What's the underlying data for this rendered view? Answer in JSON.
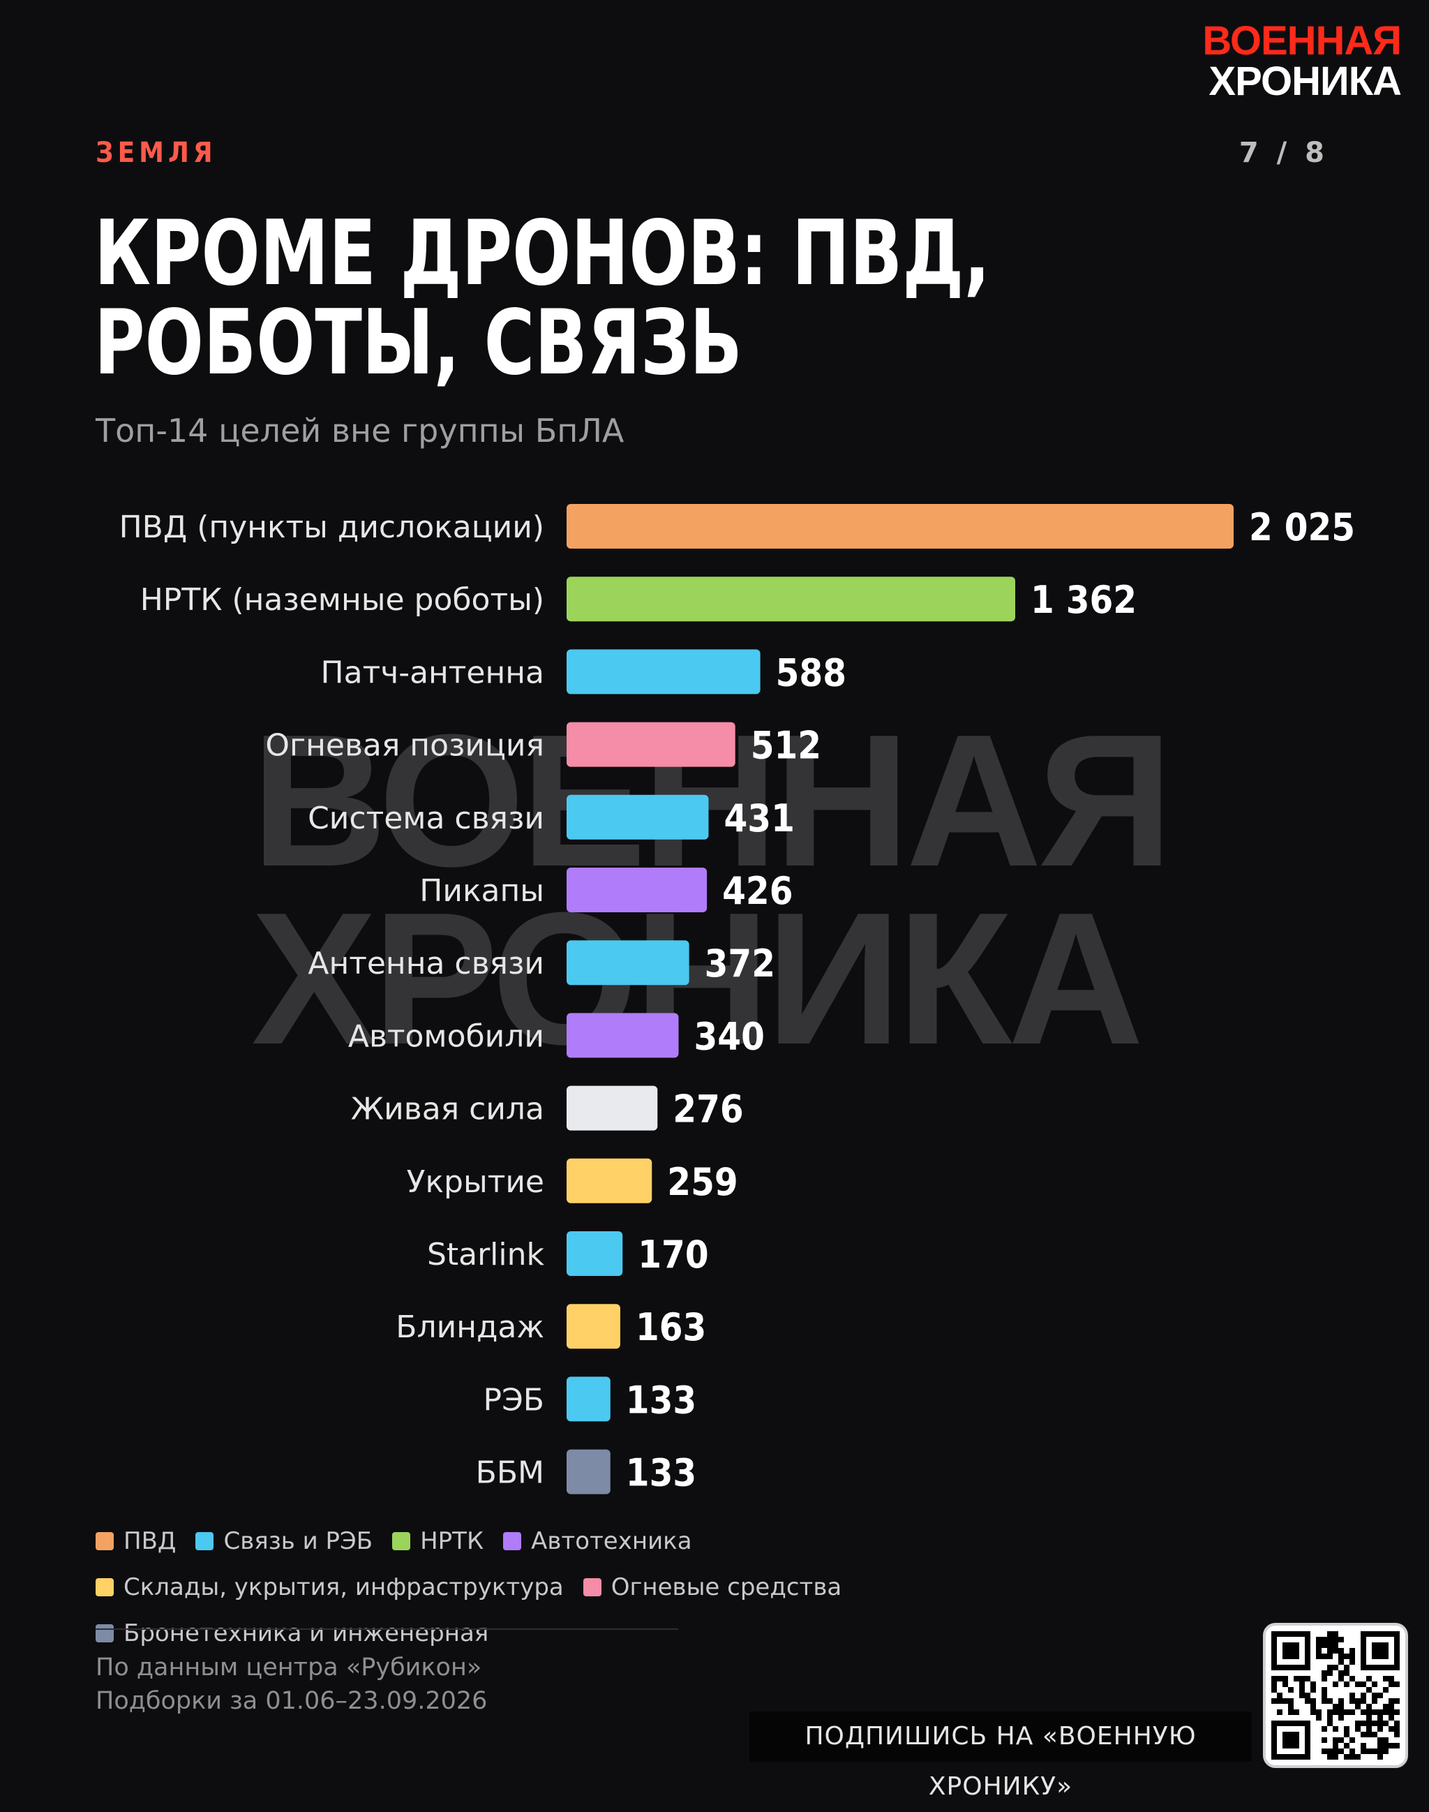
{
  "brand": {
    "line1": "ВОЕННАЯ",
    "line2": "ХРОНИКА"
  },
  "section_label": "ЗЕМЛЯ",
  "page_counter": "7 / 8",
  "title": "КРОМЕ ДРОНОВ: ПВД, РОБОТЫ, СВЯЗЬ",
  "subtitle": "Топ-14 целей вне группы БпЛА",
  "colors": {
    "pvd": "#f4a261",
    "comms": "#4cc9f0",
    "nrtk": "#9cd45b",
    "auto": "#b07cf9",
    "storage": "#ffd166",
    "fire": "#f58ca8",
    "armor": "#7d8ba6",
    "manpower": "#e8eaee"
  },
  "chart_data": {
    "type": "bar",
    "orientation": "horizontal",
    "categories": [
      "ПВД (пункты дислокации)",
      "НРТК (наземные роботы)",
      "Патч-антенна",
      "Огневая позиция",
      "Система связи",
      "Пикапы",
      "Антенна связи",
      "Автомобили",
      "Живая сила",
      "Укрытие",
      "Starlink",
      "Блиндаж",
      "РЭБ",
      "ББМ"
    ],
    "values": [
      2025,
      1362,
      588,
      512,
      431,
      426,
      372,
      340,
      276,
      259,
      170,
      163,
      133,
      133
    ],
    "value_labels": [
      "2 025",
      "1 362",
      "588",
      "512",
      "431",
      "426",
      "372",
      "340",
      "276",
      "259",
      "170",
      "163",
      "133",
      "133"
    ],
    "bar_colors": [
      "#f4a261",
      "#9cd45b",
      "#4cc9f0",
      "#f58ca8",
      "#4cc9f0",
      "#b07cf9",
      "#4cc9f0",
      "#b07cf9",
      "#e8eaee",
      "#ffd166",
      "#4cc9f0",
      "#ffd166",
      "#4cc9f0",
      "#7d8ba6"
    ],
    "xlim": [
      0,
      2025
    ],
    "grid": false,
    "legend_position": "bottom"
  },
  "legend": [
    {
      "label": "ПВД",
      "color": "#f4a261"
    },
    {
      "label": "Связь и РЭБ",
      "color": "#4cc9f0"
    },
    {
      "label": "НРТК",
      "color": "#9cd45b"
    },
    {
      "label": "Автотехника",
      "color": "#b07cf9"
    },
    {
      "label": "Склады, укрытия, инфраструктура",
      "color": "#ffd166"
    },
    {
      "label": "Огневые средства",
      "color": "#f58ca8"
    },
    {
      "label": "Бронетехника и инженерная",
      "color": "#7d8ba6"
    }
  ],
  "source": {
    "line1": "По данным центра «Рубикон»",
    "line2": "Подборки за 01.06–23.09.2026"
  },
  "subscribe_label": "ПОДПИШИСЬ НА «ВОЕННУЮ ХРОНИКУ»"
}
